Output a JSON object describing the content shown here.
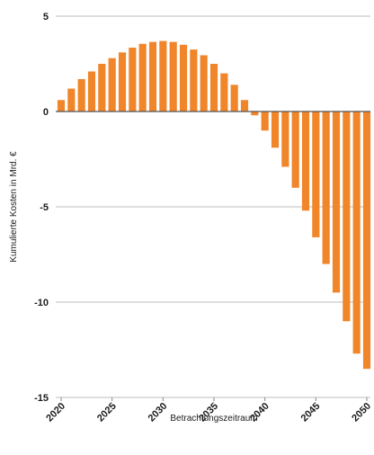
{
  "chart_data": {
    "type": "bar",
    "title": "",
    "xlabel": "Betrachtungszeitraum",
    "ylabel": "Kumulierte Kosten in Mrd. €",
    "ylim": [
      -15,
      5
    ],
    "yticks": [
      5,
      0,
      -5,
      -10,
      -15
    ],
    "ytick_labels": [
      "5",
      "0",
      "-5",
      "-10",
      "-15"
    ],
    "xticks": [
      2020,
      2025,
      2030,
      2035,
      2040,
      2045,
      2050
    ],
    "xtick_labels": [
      "2020",
      "2025",
      "2030",
      "2035",
      "2040",
      "2045",
      "2050"
    ],
    "grid": "horizontal",
    "legend": "none",
    "colors": {
      "bar": "#f0852a",
      "grid": "#bdbdbd",
      "zero_line": "#555555"
    },
    "series": [
      {
        "x": [
          2020,
          2021,
          2022,
          2023,
          2024,
          2025,
          2026,
          2027,
          2028,
          2029,
          2030,
          2031,
          2032,
          2033,
          2034,
          2035,
          2036,
          2037,
          2038,
          2039,
          2040,
          2041,
          2042,
          2043,
          2044,
          2045,
          2046,
          2047,
          2048,
          2049,
          2050
        ],
        "values": [
          0.6,
          1.2,
          1.7,
          2.1,
          2.5,
          2.8,
          3.1,
          3.35,
          3.55,
          3.65,
          3.7,
          3.65,
          3.5,
          3.25,
          2.95,
          2.5,
          2.0,
          1.4,
          0.6,
          -0.2,
          -1.0,
          -1.9,
          -2.9,
          -4.0,
          -5.2,
          -6.6,
          -8.0,
          -9.5,
          -11.0,
          -12.7,
          -13.5
        ]
      }
    ]
  }
}
